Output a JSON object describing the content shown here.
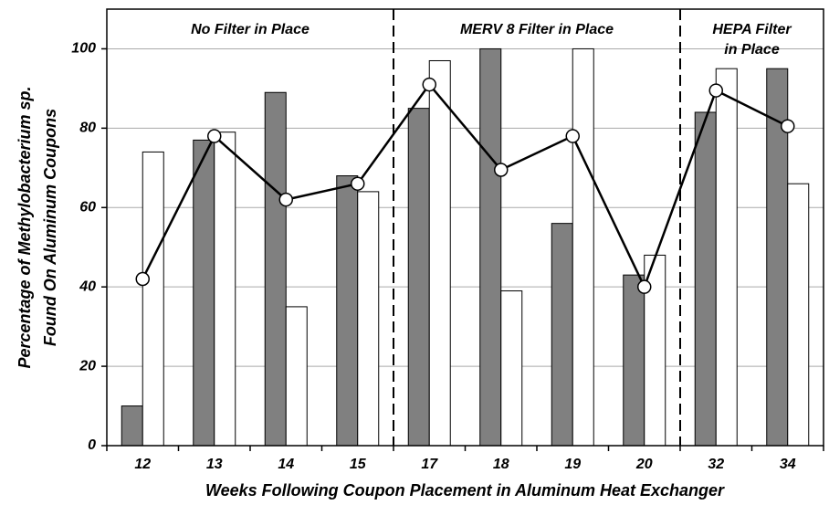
{
  "chart_data": {
    "type": "bar",
    "ylabel": [
      "Percentage of Methylobacterium sp.",
      "Found On Aluminum Coupons"
    ],
    "xlabel": "Weeks Following Coupon Placement in Aluminum Heat Exchanger",
    "annotations": [
      [
        "No Filter in Place"
      ],
      [
        "MERV 8 Filter in Place"
      ],
      [
        "HEPA Filter",
        "in Place"
      ]
    ],
    "categories": [
      "12",
      "13",
      "14",
      "15",
      "17",
      "18",
      "19",
      "20",
      "32",
      "34"
    ],
    "series": [
      {
        "type": "bar",
        "color": "#808080",
        "values": [
          10,
          77,
          89,
          68,
          85,
          100,
          56,
          43,
          84,
          95
        ]
      },
      {
        "type": "bar",
        "color": "#ffffff",
        "values": [
          74,
          79,
          35,
          64,
          97,
          39,
          100,
          48,
          95,
          66
        ]
      },
      {
        "type": "line",
        "color": "#000000",
        "values": [
          42,
          78,
          62,
          66,
          91,
          69.5,
          78,
          40,
          89.5,
          80.5
        ]
      }
    ],
    "ylim": [
      0,
      110
    ],
    "yticks": [
      0,
      20,
      40,
      60,
      80,
      100
    ],
    "grid": true
  }
}
